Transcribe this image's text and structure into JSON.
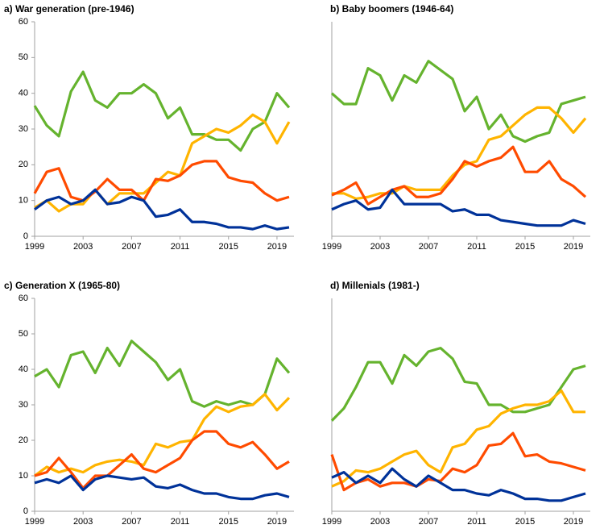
{
  "chart_data": [
    {
      "type": "line",
      "title": "a) War generation (pre-1946)",
      "x": [
        1999,
        2000,
        2001,
        2002,
        2003,
        2004,
        2005,
        2006,
        2007,
        2008,
        2009,
        2010,
        2011,
        2012,
        2013,
        2014,
        2015,
        2016,
        2017,
        2018,
        2019,
        2020
      ],
      "xlim": [
        1999,
        2020.4
      ],
      "xticks": [
        1999,
        2003,
        2007,
        2011,
        2015,
        2019
      ],
      "ylim": [
        0,
        60
      ],
      "yticks": [
        0,
        10,
        20,
        30,
        40,
        50,
        60
      ],
      "series": [
        {
          "color": "#65b32e",
          "values": [
            36.5,
            31,
            28,
            40.5,
            46,
            38,
            36,
            40,
            40,
            42.5,
            40,
            33,
            36,
            28.5,
            28.5,
            27,
            27,
            24,
            30,
            32,
            40,
            36
          ]
        },
        {
          "color": "#ffb400",
          "values": [
            8,
            10,
            7,
            9,
            9,
            13,
            9,
            12,
            12,
            12,
            15,
            18,
            17,
            26,
            28,
            30,
            29,
            31,
            34,
            32,
            26,
            32
          ]
        },
        {
          "color": "#ff4b00",
          "values": [
            12,
            18,
            19,
            11,
            10,
            12.5,
            16,
            13,
            13,
            10,
            16,
            15.5,
            17,
            20,
            21,
            21,
            16.5,
            15.5,
            15,
            12,
            10,
            11
          ]
        },
        {
          "color": "#003299",
          "values": [
            7.5,
            10,
            11,
            9,
            10,
            13,
            9,
            9.5,
            11,
            10,
            5.5,
            6,
            7.5,
            4,
            4,
            3.5,
            2.5,
            2.5,
            2,
            3,
            2,
            2.5
          ]
        }
      ]
    },
    {
      "type": "line",
      "title": "b) Baby boomers (1946-64)",
      "x": [
        1999,
        2000,
        2001,
        2002,
        2003,
        2004,
        2005,
        2006,
        2007,
        2008,
        2009,
        2010,
        2011,
        2012,
        2013,
        2014,
        2015,
        2016,
        2017,
        2018,
        2019,
        2020
      ],
      "xlim": [
        1999,
        2020.4
      ],
      "xticks": [
        1999,
        2003,
        2007,
        2011,
        2015,
        2019
      ],
      "ylim": [
        0,
        60
      ],
      "series": [
        {
          "color": "#65b32e",
          "values": [
            40,
            37,
            37,
            47,
            45,
            38,
            45,
            43,
            49,
            46.5,
            44,
            35,
            39,
            30,
            34,
            28,
            26.5,
            28,
            29,
            37,
            38,
            39
          ]
        },
        {
          "color": "#ffb400",
          "values": [
            12,
            12,
            10.5,
            11,
            12,
            12,
            14,
            13,
            13,
            13,
            17,
            20,
            21,
            27,
            28,
            31,
            34,
            36,
            36,
            33,
            29,
            33
          ]
        },
        {
          "color": "#ff4b00",
          "values": [
            11.5,
            13,
            15,
            9,
            11,
            13,
            14,
            11,
            11,
            12,
            16,
            21,
            19.5,
            21,
            22,
            25,
            18,
            18,
            21,
            16,
            14,
            11
          ]
        },
        {
          "color": "#003299",
          "values": [
            7.5,
            9,
            10,
            7.5,
            8,
            13,
            9,
            9,
            9,
            9,
            7,
            7.5,
            6,
            6,
            4.5,
            4,
            3.5,
            3,
            3,
            3,
            4.5,
            3.5
          ]
        }
      ]
    },
    {
      "type": "line",
      "title": "c) Generation X (1965-80)",
      "x": [
        1999,
        2000,
        2001,
        2002,
        2003,
        2004,
        2005,
        2006,
        2007,
        2008,
        2009,
        2010,
        2011,
        2012,
        2013,
        2014,
        2015,
        2016,
        2017,
        2018,
        2019,
        2020
      ],
      "xlim": [
        1999,
        2020.4
      ],
      "xticks": [
        1999,
        2003,
        2007,
        2011,
        2015,
        2019
      ],
      "ylim": [
        0,
        60
      ],
      "yticks": [
        0,
        10,
        20,
        30,
        40,
        50,
        60
      ],
      "series": [
        {
          "color": "#65b32e",
          "values": [
            38,
            40,
            35,
            44,
            45,
            39,
            46,
            41,
            48,
            45,
            42,
            37,
            40,
            31,
            29.5,
            31,
            30,
            31,
            30,
            33,
            43,
            39
          ]
        },
        {
          "color": "#ffb400",
          "values": [
            10,
            12.5,
            11,
            12,
            11,
            13,
            14,
            14.5,
            14,
            13,
            19,
            18,
            19.5,
            20,
            26,
            29.5,
            28,
            29.5,
            30,
            33,
            28.5,
            32
          ]
        },
        {
          "color": "#ff4b00",
          "values": [
            10,
            11,
            15,
            11,
            6.5,
            10,
            10,
            13,
            16,
            12,
            11,
            13,
            15,
            20,
            22.5,
            22.5,
            19,
            18,
            19.5,
            16,
            12,
            14
          ]
        },
        {
          "color": "#003299",
          "values": [
            8,
            9,
            8,
            10,
            6,
            9,
            10,
            9.5,
            9,
            9.5,
            7,
            6.5,
            7.5,
            6,
            5,
            5,
            4,
            3.5,
            3.5,
            4.5,
            5,
            4
          ]
        }
      ]
    },
    {
      "type": "line",
      "title": "d) Millenials (1981-)",
      "x": [
        1999,
        2000,
        2001,
        2002,
        2003,
        2004,
        2005,
        2006,
        2007,
        2008,
        2009,
        2010,
        2011,
        2012,
        2013,
        2014,
        2015,
        2016,
        2017,
        2018,
        2019,
        2020
      ],
      "xlim": [
        1999,
        2020.4
      ],
      "xticks": [
        1999,
        2003,
        2007,
        2011,
        2015,
        2019
      ],
      "ylim": [
        0,
        60
      ],
      "series": [
        {
          "color": "#65b32e",
          "values": [
            25.5,
            29,
            35,
            42,
            42,
            36,
            44,
            41,
            45,
            46,
            43,
            36.5,
            36,
            30,
            30,
            28,
            28,
            29,
            30,
            35,
            40,
            41
          ]
        },
        {
          "color": "#ffb400",
          "values": [
            7,
            8.5,
            11.5,
            11,
            12,
            14,
            16,
            17,
            13,
            11,
            18,
            19,
            23,
            24,
            27.5,
            29,
            30,
            30,
            31,
            34,
            28,
            28
          ]
        },
        {
          "color": "#ff4b00",
          "values": [
            16,
            6,
            8,
            9,
            7,
            8,
            8,
            7,
            9,
            8.5,
            12,
            11,
            13,
            18.5,
            19,
            22,
            15.5,
            16,
            14,
            13.5,
            12.5,
            11.5
          ]
        },
        {
          "color": "#003299",
          "values": [
            9.5,
            11,
            8,
            10,
            8,
            12,
            9,
            7,
            10,
            8,
            6,
            6,
            5,
            4.5,
            6,
            5,
            3.5,
            3.5,
            3,
            3,
            4,
            5
          ]
        }
      ]
    }
  ]
}
